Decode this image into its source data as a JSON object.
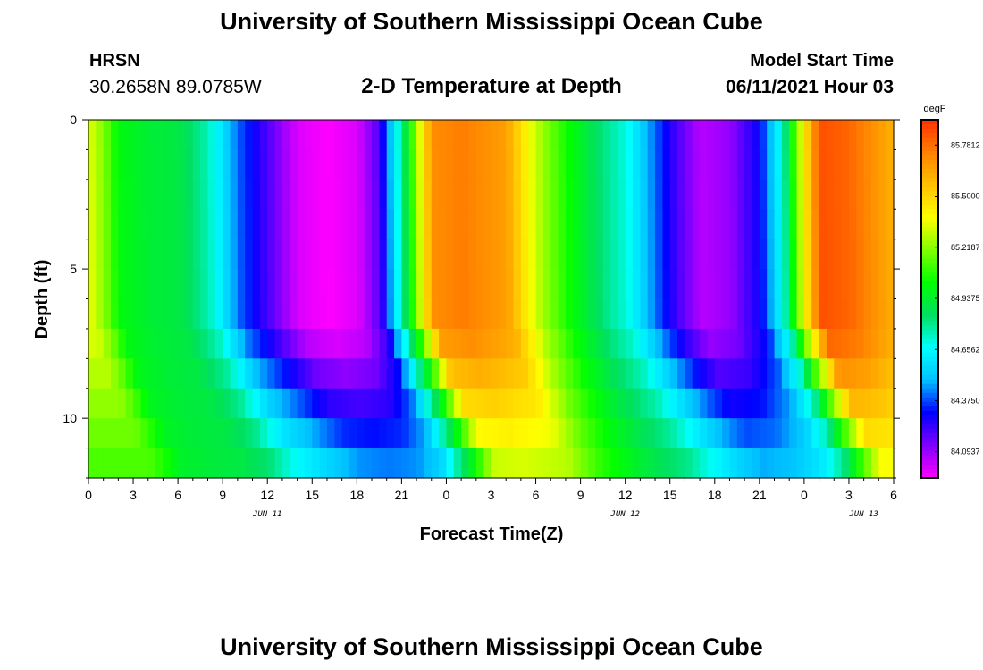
{
  "header": {
    "title": "University of Southern Mississippi Ocean Cube",
    "station": "HRSN",
    "coordinates": "30.2658N  89.0785W",
    "plot_title": "2-D Temperature at Depth",
    "model_start_label": "Model Start Time",
    "model_start_value": "06/11/2021 Hour 03"
  },
  "footer": {
    "title": "University of Southern Mississippi Ocean Cube"
  },
  "chart_data": {
    "type": "heatmap",
    "title": "2-D Temperature at Depth",
    "xlabel": "Forecast Time(Z)",
    "ylabel": "Depth (ft)",
    "x_tick_labels": [
      "0",
      "3",
      "6",
      "9",
      "12",
      "15",
      "18",
      "21",
      "0",
      "3",
      "6",
      "9",
      "12",
      "15",
      "18",
      "21",
      "0",
      "3",
      "6"
    ],
    "x_range_hours": [
      0,
      54
    ],
    "date_labels": [
      {
        "label": "JUN 11",
        "hour": 12
      },
      {
        "label": "JUN 12",
        "hour": 36
      },
      {
        "label": "JUN 13",
        "hour": 52
      }
    ],
    "y_tick_labels": [
      "0",
      "5",
      "10"
    ],
    "y_range_ft": [
      0,
      12
    ],
    "colorbar": {
      "unit": "degF",
      "labels": [
        "85.7812",
        "85.5000",
        "85.2187",
        "84.9375",
        "84.6562",
        "84.3750",
        "84.0937"
      ],
      "min": 83.95,
      "max": 85.92,
      "colors": [
        "#ff00ff",
        "#8000ff",
        "#0000ff",
        "#00c0ff",
        "#00ffff",
        "#00e060",
        "#00ff00",
        "#80ff00",
        "#ffff00",
        "#ffc000",
        "#ff8000",
        "#ff3000"
      ]
    },
    "surface_temperature_profile": {
      "hours": [
        0,
        1,
        2,
        4,
        6,
        8,
        10,
        12,
        14,
        16,
        18,
        19.5,
        20.5,
        21.5,
        23,
        25,
        28,
        30,
        32,
        34,
        36,
        38,
        39.5,
        41,
        43,
        45,
        46.5,
        47.5,
        49,
        51,
        54
      ],
      "values": [
        85.35,
        85.2,
        85.0,
        84.93,
        84.9,
        84.75,
        84.4,
        84.2,
        84.0,
        83.95,
        84.0,
        84.2,
        84.6,
        85.0,
        85.7,
        85.75,
        85.65,
        85.3,
        85.05,
        84.85,
        84.7,
        84.4,
        84.2,
        84.05,
        84.1,
        84.3,
        84.7,
        85.2,
        85.85,
        85.8,
        85.6
      ]
    }
  }
}
